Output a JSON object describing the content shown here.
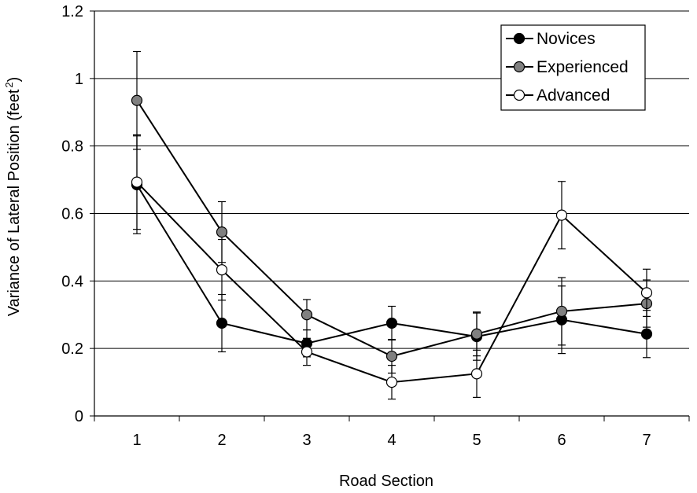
{
  "chart_data": {
    "type": "line",
    "title": "",
    "xlabel": "Road Section",
    "ylabel": "Variance of Lateral Position (feet",
    "ylabel_superscript": "2",
    "ylabel_suffix": ")",
    "categories": [
      "1",
      "2",
      "3",
      "4",
      "5",
      "6",
      "7"
    ],
    "ylim": [
      0,
      1.2
    ],
    "yticks": [
      "0",
      "0.2",
      "0.4",
      "0.6",
      "0.8",
      "1",
      "1.2"
    ],
    "grid": "horizontal",
    "legend_position": "top-right",
    "series": [
      {
        "name": "Novices",
        "marker_color": "#000000",
        "values": [
          0.685,
          0.275,
          0.215,
          0.275,
          0.235,
          0.285,
          0.243
        ],
        "error": [
          0.145,
          0.085,
          0.04,
          0.05,
          0.07,
          0.1,
          0.07
        ]
      },
      {
        "name": "Experienced",
        "marker_color": "#808080",
        "values": [
          0.935,
          0.545,
          0.3,
          0.177,
          0.243,
          0.31,
          0.333
        ],
        "error": [
          0.145,
          0.09,
          0.045,
          0.05,
          0.065,
          0.1,
          0.07
        ]
      },
      {
        "name": "Advanced",
        "marker_color": "#ffffff",
        "values": [
          0.693,
          0.433,
          0.19,
          0.1,
          0.125,
          0.595,
          0.365
        ],
        "error": [
          0.14,
          0.09,
          0.04,
          0.05,
          0.07,
          0.1,
          0.07
        ]
      }
    ]
  }
}
